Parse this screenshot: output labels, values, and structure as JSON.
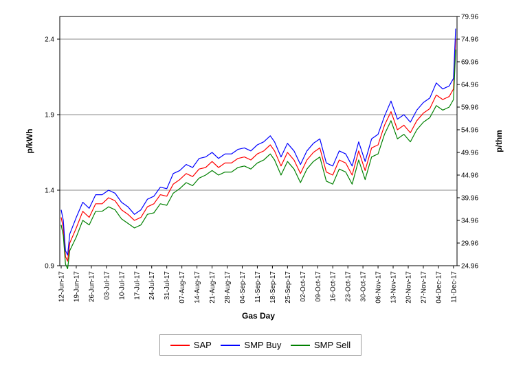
{
  "chart_data": {
    "type": "line",
    "title": "",
    "xlabel": "Gas Day",
    "ylabel": "p/kWh",
    "ylabel_right": "p/thm",
    "ylim": [
      0.9,
      2.55
    ],
    "ylim_right": [
      24.96,
      79.96
    ],
    "yticks": [
      0.9,
      1.4,
      1.9,
      2.4
    ],
    "yticks_labels": [
      "0.9",
      "1.4",
      "1.9",
      "2.4"
    ],
    "yticks_right": [
      "24.96",
      "29.96",
      "34.96",
      "39.96",
      "44.96",
      "49.96",
      "54.96",
      "59.96",
      "64.96",
      "69.96",
      "74.96",
      "79.96"
    ],
    "grid": true,
    "legend": "bottom",
    "xticks": [
      "12-Jun-17",
      "19-Jun-17",
      "26-Jun-17",
      "03-Jul-17",
      "10-Jul-17",
      "17-Jul-17",
      "24-Jul-17",
      "31-Jul-17",
      "07-Aug-17",
      "14-Aug-17",
      "21-Aug-17",
      "28-Aug-17",
      "04-Sep-17",
      "11-Sep-17",
      "18-Sep-17",
      "25-Sep-17",
      "02-Oct-17",
      "09-Oct-17",
      "16-Oct-17",
      "23-Oct-17",
      "30-Oct-17",
      "06-Nov-17",
      "13-Nov-17",
      "20-Nov-17",
      "27-Nov-17",
      "04-Dec-17",
      "11-Dec-17"
    ],
    "x": [
      "12-Jun-17",
      "13-Jun-17",
      "14-Jun-17",
      "15-Jun-17",
      "16-Jun-17",
      "19-Jun-17",
      "22-Jun-17",
      "25-Jun-17",
      "28-Jun-17",
      "01-Jul-17",
      "04-Jul-17",
      "07-Jul-17",
      "10-Jul-17",
      "13-Jul-17",
      "16-Jul-17",
      "19-Jul-17",
      "22-Jul-17",
      "25-Jul-17",
      "28-Jul-17",
      "31-Jul-17",
      "03-Aug-17",
      "06-Aug-17",
      "09-Aug-17",
      "12-Aug-17",
      "15-Aug-17",
      "18-Aug-17",
      "21-Aug-17",
      "24-Aug-17",
      "27-Aug-17",
      "30-Aug-17",
      "02-Sep-17",
      "05-Sep-17",
      "08-Sep-17",
      "11-Sep-17",
      "14-Sep-17",
      "17-Sep-17",
      "19-Sep-17",
      "22-Sep-17",
      "25-Sep-17",
      "28-Sep-17",
      "01-Oct-17",
      "04-Oct-17",
      "07-Oct-17",
      "10-Oct-17",
      "13-Oct-17",
      "16-Oct-17",
      "19-Oct-17",
      "22-Oct-17",
      "25-Oct-17",
      "28-Oct-17",
      "31-Oct-17",
      "03-Nov-17",
      "06-Nov-17",
      "09-Nov-17",
      "12-Nov-17",
      "15-Nov-17",
      "18-Nov-17",
      "21-Nov-17",
      "24-Nov-17",
      "27-Nov-17",
      "30-Nov-17",
      "03-Dec-17",
      "06-Dec-17",
      "09-Dec-17",
      "11-Dec-17",
      "12-Dec-17"
    ],
    "series": [
      {
        "name": "SAP",
        "color": "#ff0000",
        "values": [
          1.22,
          1.15,
          0.96,
          0.93,
          1.05,
          1.15,
          1.26,
          1.22,
          1.31,
          1.31,
          1.35,
          1.33,
          1.27,
          1.24,
          1.2,
          1.22,
          1.29,
          1.31,
          1.37,
          1.36,
          1.44,
          1.47,
          1.51,
          1.49,
          1.54,
          1.55,
          1.59,
          1.55,
          1.58,
          1.58,
          1.61,
          1.62,
          1.6,
          1.64,
          1.66,
          1.7,
          1.66,
          1.56,
          1.65,
          1.6,
          1.51,
          1.6,
          1.65,
          1.68,
          1.52,
          1.5,
          1.6,
          1.58,
          1.5,
          1.66,
          1.53,
          1.68,
          1.7,
          1.83,
          1.92,
          1.8,
          1.83,
          1.78,
          1.86,
          1.91,
          1.94,
          2.03,
          2.0,
          2.02,
          2.07,
          2.4
        ]
      },
      {
        "name": "SMP Buy",
        "color": "#0000ff",
        "values": [
          1.27,
          1.2,
          1.0,
          0.97,
          1.11,
          1.22,
          1.32,
          1.28,
          1.37,
          1.37,
          1.4,
          1.38,
          1.32,
          1.29,
          1.24,
          1.27,
          1.34,
          1.36,
          1.42,
          1.41,
          1.51,
          1.53,
          1.57,
          1.55,
          1.61,
          1.62,
          1.65,
          1.61,
          1.64,
          1.64,
          1.67,
          1.68,
          1.66,
          1.7,
          1.72,
          1.76,
          1.72,
          1.62,
          1.71,
          1.66,
          1.57,
          1.66,
          1.71,
          1.74,
          1.58,
          1.56,
          1.66,
          1.64,
          1.56,
          1.72,
          1.59,
          1.74,
          1.77,
          1.89,
          1.99,
          1.87,
          1.9,
          1.85,
          1.93,
          1.98,
          2.01,
          2.11,
          2.07,
          2.09,
          2.14,
          2.47
        ]
      },
      {
        "name": "SMP Sell",
        "color": "#008000",
        "values": [
          1.17,
          1.1,
          0.91,
          0.88,
          1.0,
          1.09,
          1.2,
          1.17,
          1.26,
          1.26,
          1.29,
          1.27,
          1.21,
          1.18,
          1.15,
          1.17,
          1.24,
          1.25,
          1.31,
          1.3,
          1.38,
          1.41,
          1.45,
          1.43,
          1.48,
          1.5,
          1.53,
          1.5,
          1.52,
          1.52,
          1.55,
          1.56,
          1.54,
          1.58,
          1.6,
          1.64,
          1.6,
          1.5,
          1.59,
          1.54,
          1.45,
          1.54,
          1.59,
          1.62,
          1.46,
          1.44,
          1.54,
          1.52,
          1.44,
          1.6,
          1.47,
          1.62,
          1.64,
          1.77,
          1.86,
          1.74,
          1.77,
          1.72,
          1.8,
          1.85,
          1.88,
          1.96,
          1.93,
          1.95,
          2.0,
          2.33
        ]
      }
    ]
  }
}
